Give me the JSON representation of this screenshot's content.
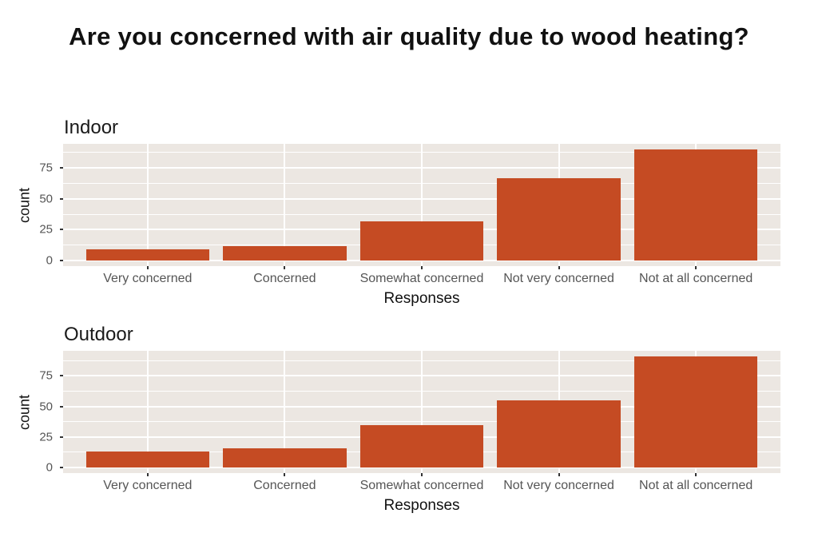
{
  "page": {
    "title": "Are you concerned with air quality due to wood heating?"
  },
  "colors": {
    "bar": "#C54B23",
    "panel_background": "#ECE7E2",
    "gridline": "#FFFFFF",
    "tick_text": "#555555",
    "axis_text": "#111111"
  },
  "chart_data": [
    {
      "type": "bar",
      "title": "Indoor",
      "xlabel": "Responses",
      "ylabel": "count",
      "categories": [
        "Very concerned",
        "Concerned",
        "Somewhat concerned",
        "Not very concerned",
        "Not at all concerned"
      ],
      "values": [
        9,
        12,
        32,
        67,
        90
      ],
      "yticks": [
        0,
        25,
        50,
        75
      ],
      "ylim": [
        -4.5,
        94.5
      ],
      "grid": true,
      "legend": "none"
    },
    {
      "type": "bar",
      "title": "Outdoor",
      "xlabel": "Responses",
      "ylabel": "count",
      "categories": [
        "Very concerned",
        "Concerned",
        "Somewhat concerned",
        "Not very concerned",
        "Not at all concerned"
      ],
      "values": [
        13,
        16,
        35,
        55,
        91
      ],
      "yticks": [
        0,
        25,
        50,
        75
      ],
      "ylim": [
        -4.55,
        95.55
      ],
      "grid": true,
      "legend": "none"
    }
  ]
}
